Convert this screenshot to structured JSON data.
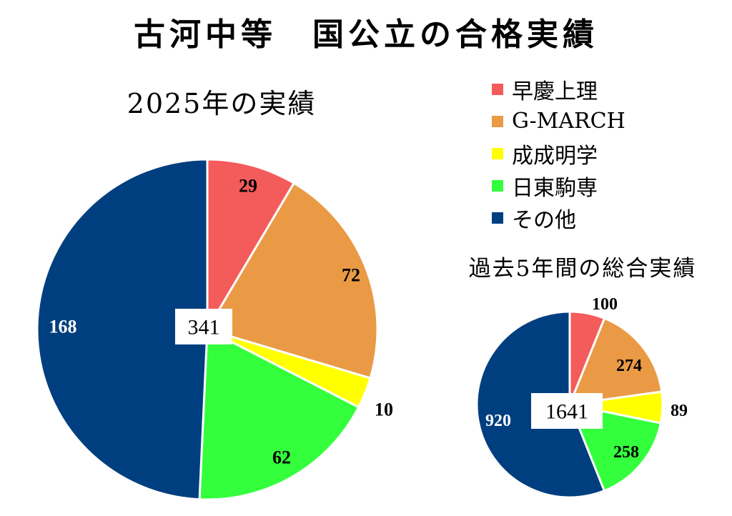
{
  "title": "古河中等　国公立の合格実績",
  "legend": [
    {
      "label": "早慶上理",
      "color": "#f45b5b"
    },
    {
      "label": "G-MARCH",
      "color": "#ea9a45"
    },
    {
      "label": "成成明学",
      "color": "#ffff00"
    },
    {
      "label": "日東駒専",
      "color": "#33ff3c"
    },
    {
      "label": "その他",
      "color": "#003f7f"
    }
  ],
  "chart_data": [
    {
      "type": "pie",
      "title": "2025年の実績",
      "categories": [
        "早慶上理",
        "G-MARCH",
        "成成明学",
        "日東駒専",
        "その他"
      ],
      "values": [
        29,
        72,
        10,
        62,
        168
      ],
      "total": "341"
    },
    {
      "type": "pie",
      "title": "過去5年間の総合実績",
      "categories": [
        "早慶上理",
        "G-MARCH",
        "成成明学",
        "日東駒専",
        "その他"
      ],
      "values": [
        100,
        274,
        89,
        258,
        920
      ],
      "total": "1641"
    }
  ]
}
